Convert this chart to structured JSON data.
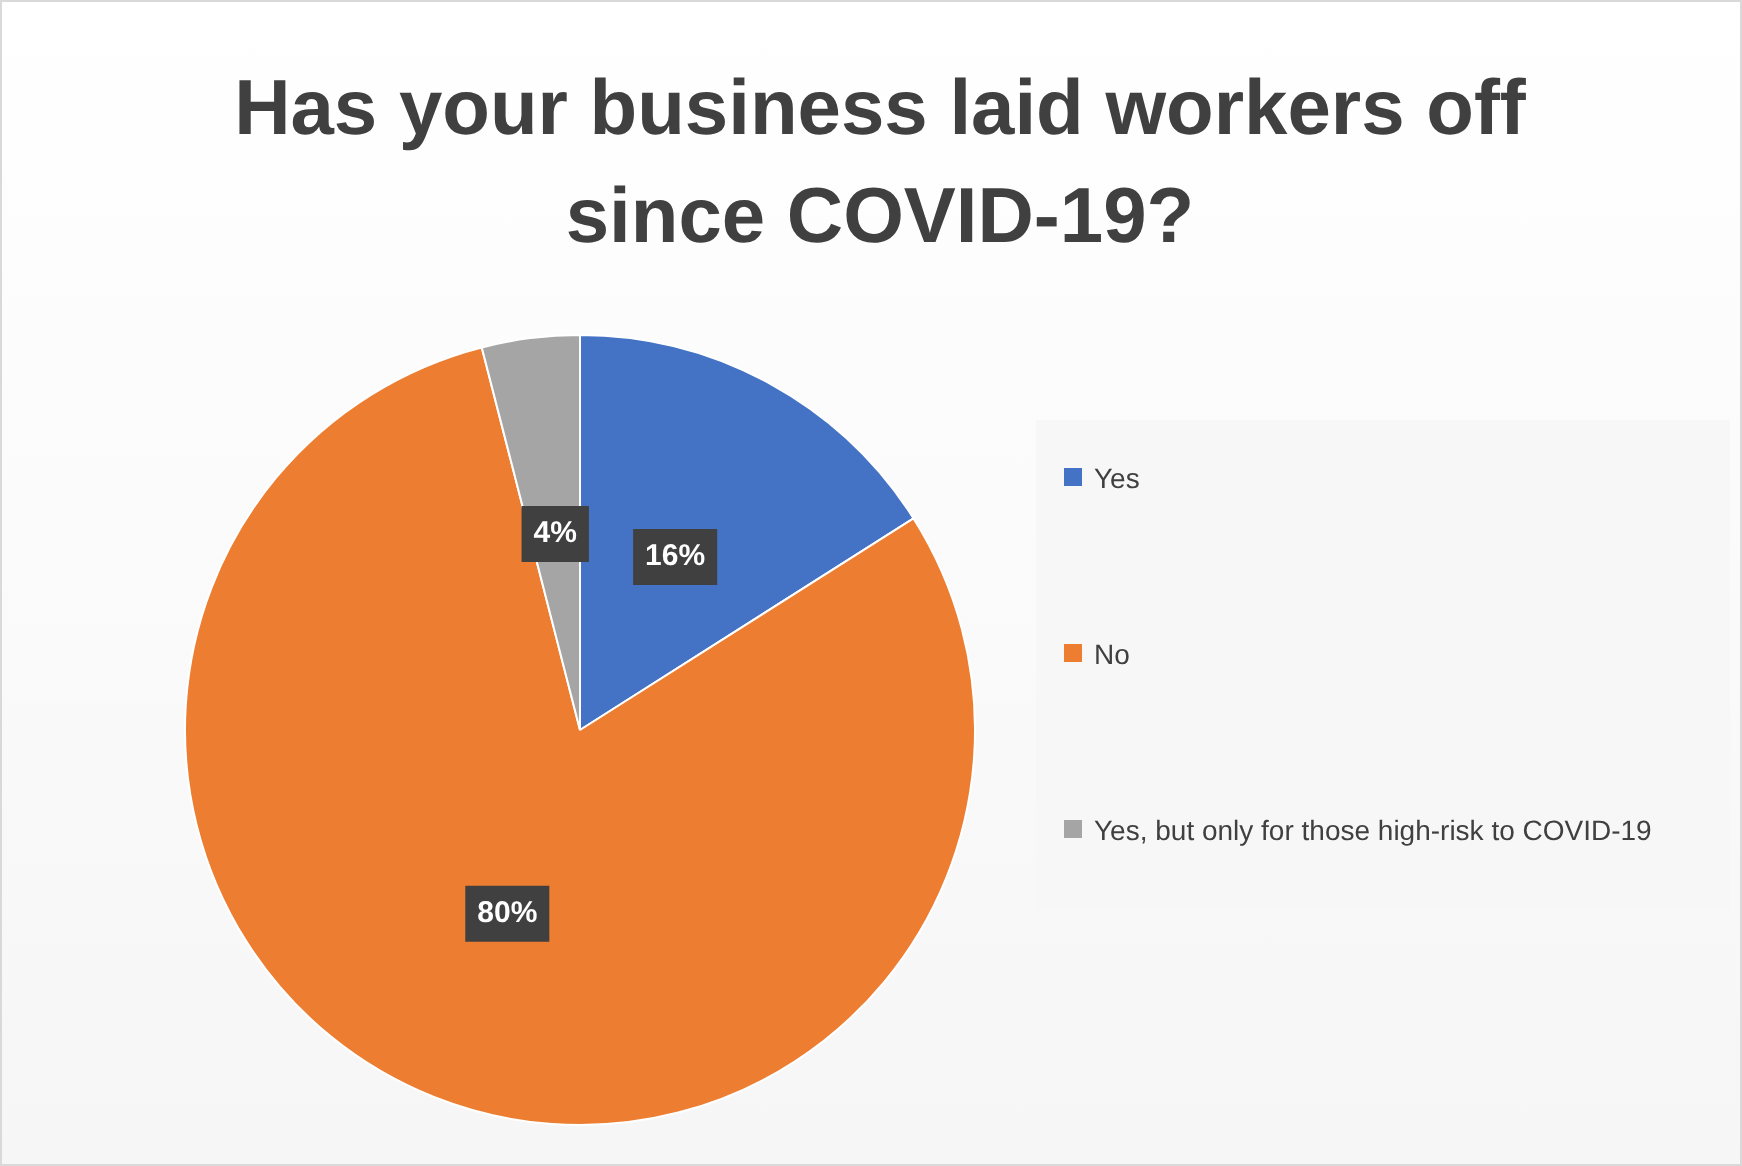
{
  "chart_data": {
    "type": "pie",
    "title": "Has your business laid workers off since COVID-19?",
    "categories": [
      "Yes",
      "No",
      "Yes, but only for those high-risk to COVID-19"
    ],
    "values": [
      16,
      80,
      4
    ],
    "colors": [
      "#4472c4",
      "#ed7d31",
      "#a5a5a5"
    ],
    "value_labels": [
      "16%",
      "80%",
      "4%"
    ],
    "legend": "right"
  }
}
